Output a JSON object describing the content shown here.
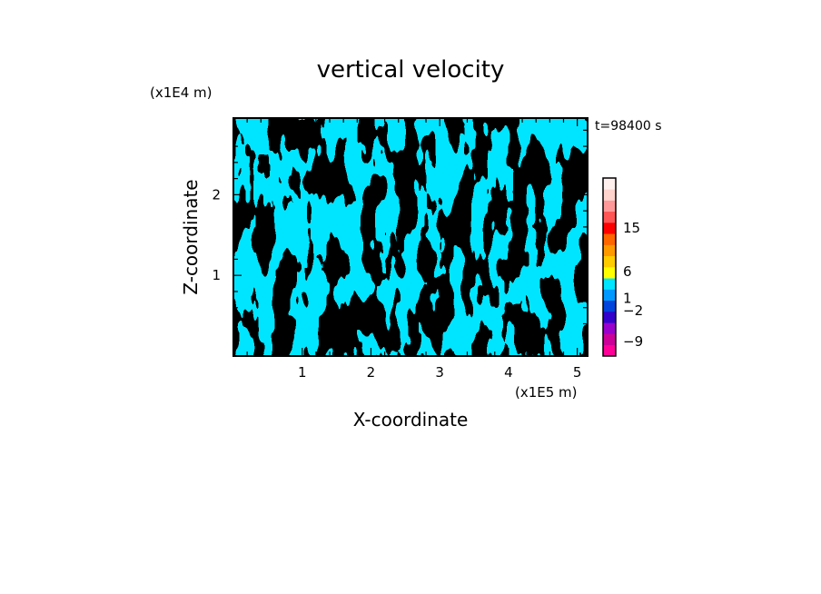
{
  "chart_data": {
    "type": "heatmap",
    "title": "vertical velocity",
    "xlabel": "X-coordinate",
    "ylabel": "Z-coordinate",
    "x_unit_label": "(x1E5 m)",
    "y_unit_label": "(x1E4 m)",
    "time_label": "t=98400 s",
    "xlim": [
      0,
      5.15
    ],
    "ylim": [
      0,
      2.95
    ],
    "x_ticks": [
      1,
      2,
      3,
      4,
      5
    ],
    "y_ticks": [
      1,
      2
    ],
    "x_tick_labels": [
      "1",
      "2",
      "3",
      "4",
      "5"
    ],
    "y_tick_labels": [
      "1",
      "2"
    ],
    "fill_colors": {
      "positive": "#ffff00",
      "negative": "#00e5ff"
    },
    "colorbar": {
      "tick_labels": [
        "15",
        "6",
        "1",
        "−2",
        "−9"
      ],
      "tick_values": [
        15,
        6,
        1,
        -2,
        -9
      ],
      "bands": [
        {
          "color": "#ff0099"
        },
        {
          "color": "#cc0099"
        },
        {
          "color": "#9900cc"
        },
        {
          "color": "#3300cc"
        },
        {
          "color": "#0044dd"
        },
        {
          "color": "#0099ff"
        },
        {
          "color": "#00e5ff"
        },
        {
          "color": "#ffff00"
        },
        {
          "color": "#ffcc00"
        },
        {
          "color": "#ff9900"
        },
        {
          "color": "#ff6600"
        },
        {
          "color": "#ff0000"
        },
        {
          "color": "#ff5555"
        },
        {
          "color": "#ff9999"
        },
        {
          "color": "#ffd4cc"
        },
        {
          "color": "#fff0ee"
        }
      ]
    }
  }
}
